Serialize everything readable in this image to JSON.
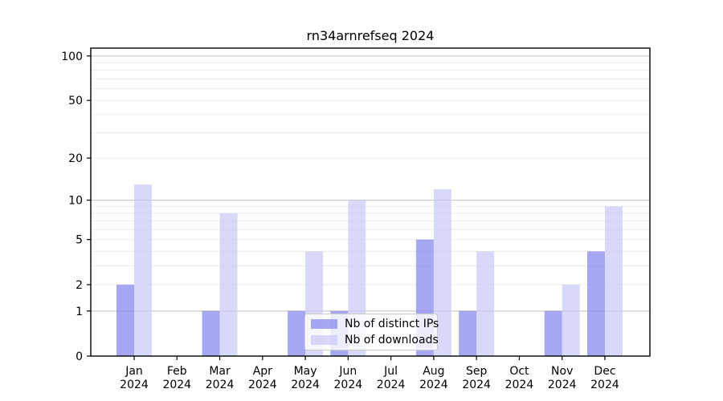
{
  "title": "rn34arnrefseq 2024",
  "colors": {
    "distinct_ips_bar": "rgba(130,130,235,0.7)",
    "downloads_bar": "rgba(200,200,245,0.7)",
    "grid_major": "#c8c8c8",
    "grid_minor": "#ececec",
    "axis_line": "#000000",
    "tick_text": "#000000",
    "legend_border": "#cccccc",
    "legend_background": "rgba(255,255,255,0.8)"
  },
  "chart_data": {
    "type": "bar",
    "title": "rn34arnrefseq 2024",
    "categories": [
      "Jan 2024",
      "Feb 2024",
      "Mar 2024",
      "Apr 2024",
      "May 2024",
      "Jun 2024",
      "Jul 2024",
      "Aug 2024",
      "Sep 2024",
      "Oct 2024",
      "Nov 2024",
      "Dec 2024"
    ],
    "series": [
      {
        "name": "Nb of distinct IPs",
        "color": "rgba(130,130,235,0.7)",
        "values": [
          2,
          0,
          1,
          0,
          1,
          1,
          0,
          5,
          1,
          0,
          1,
          4
        ]
      },
      {
        "name": "Nb of downloads",
        "color": "rgba(200,200,245,0.7)",
        "values": [
          13,
          0,
          8,
          0,
          4,
          10,
          0,
          12,
          4,
          0,
          2,
          9
        ]
      }
    ],
    "xlabel": "",
    "ylabel": "",
    "yscale": "log1p",
    "ylim": [
      0,
      115
    ],
    "y_ticks": [
      100,
      50,
      20,
      10,
      5,
      2,
      1,
      0
    ],
    "y_grid_major": [
      1,
      10,
      100
    ],
    "y_grid_minor": [
      2,
      3,
      4,
      5,
      6,
      7,
      8,
      9,
      20,
      30,
      40,
      50,
      60,
      70,
      80,
      90
    ],
    "grid": true,
    "legend_position": "lower center"
  }
}
